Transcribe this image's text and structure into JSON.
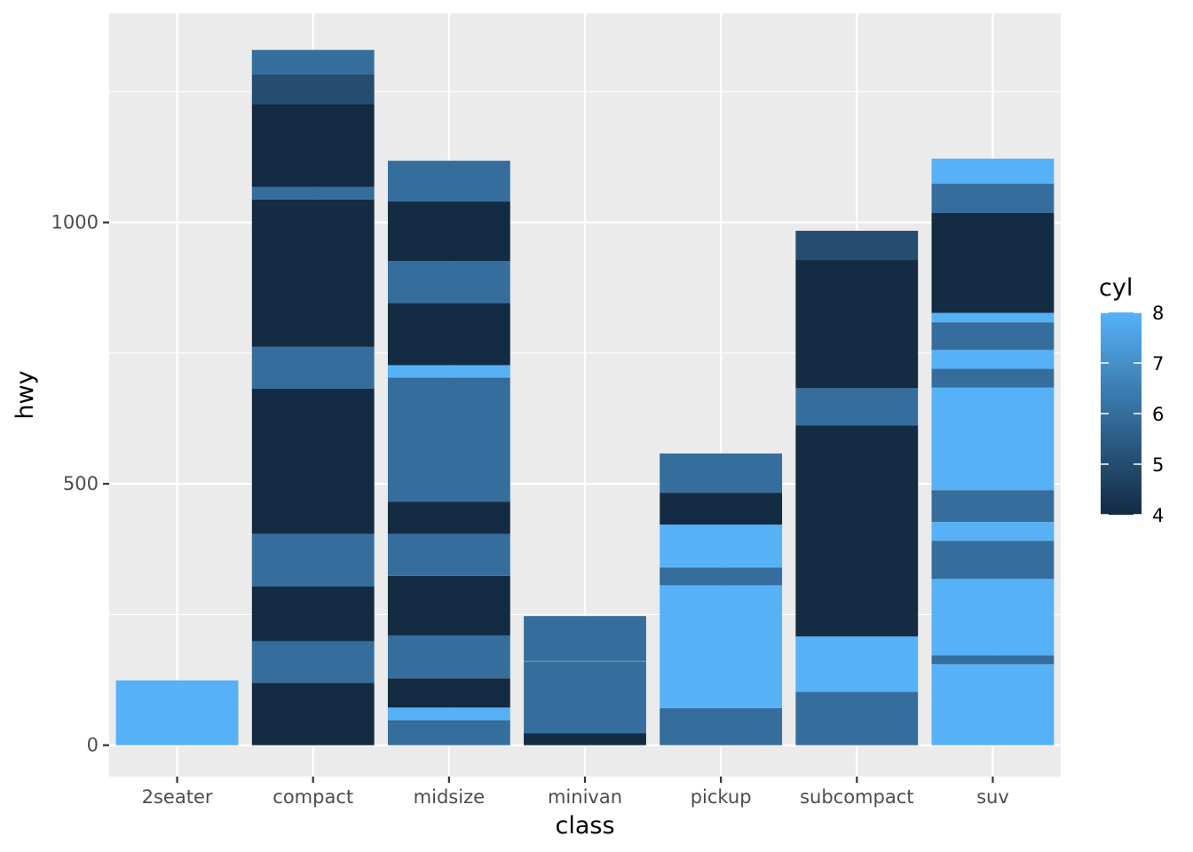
{
  "chart_data": {
    "type": "bar",
    "stacked": true,
    "xlabel": "class",
    "ylabel": "hwy",
    "ylim": [
      -60,
      1400
    ],
    "yticks": [
      0,
      500,
      1000
    ],
    "grid": true,
    "legend": {
      "title": "cyl",
      "type": "colorbar",
      "placement": "right",
      "range": [
        4,
        8
      ],
      "ticks": [
        "4",
        "5",
        "6",
        "7",
        "8"
      ],
      "color_low": "#132B43",
      "color_high": "#56B1F7"
    },
    "categories": [
      "2seater",
      "compact",
      "midsize",
      "minivan",
      "pickup",
      "subcompact",
      "suv"
    ],
    "stacks": [
      [
        {
          "value": 124,
          "cyl": 8
        }
      ],
      [
        {
          "value": 119,
          "cyl": 4
        },
        {
          "value": 80,
          "cyl": 6
        },
        {
          "value": 105,
          "cyl": 4
        },
        {
          "value": 100,
          "cyl": 6
        },
        {
          "value": 278,
          "cyl": 4
        },
        {
          "value": 80,
          "cyl": 6
        },
        {
          "value": 282,
          "cyl": 4
        },
        {
          "value": 24,
          "cyl": 6
        },
        {
          "value": 158,
          "cyl": 4
        },
        {
          "value": 58,
          "cyl": 5
        },
        {
          "value": 46,
          "cyl": 6
        }
      ],
      [
        {
          "value": 48,
          "cyl": 6
        },
        {
          "value": 24,
          "cyl": 8
        },
        {
          "value": 56,
          "cyl": 4
        },
        {
          "value": 82,
          "cyl": 6
        },
        {
          "value": 114,
          "cyl": 4
        },
        {
          "value": 80,
          "cyl": 6
        },
        {
          "value": 62,
          "cyl": 4
        },
        {
          "value": 237,
          "cyl": 6
        },
        {
          "value": 24,
          "cyl": 8
        },
        {
          "value": 119,
          "cyl": 4
        },
        {
          "value": 80,
          "cyl": 6
        },
        {
          "value": 114,
          "cyl": 4
        },
        {
          "value": 78,
          "cyl": 6
        }
      ],
      [
        {
          "value": 23,
          "cyl": 4
        },
        {
          "value": 137,
          "cyl": 6
        },
        {
          "value": 1,
          "cyl": 8
        },
        {
          "value": 86,
          "cyl": 6
        }
      ],
      [
        {
          "value": 71,
          "cyl": 6
        },
        {
          "value": 235,
          "cyl": 8
        },
        {
          "value": 34,
          "cyl": 6
        },
        {
          "value": 82,
          "cyl": 8
        },
        {
          "value": 61,
          "cyl": 4
        },
        {
          "value": 75,
          "cyl": 6
        }
      ],
      [
        {
          "value": 102,
          "cyl": 6
        },
        {
          "value": 106,
          "cyl": 8
        },
        {
          "value": 404,
          "cyl": 4
        },
        {
          "value": 71,
          "cyl": 6
        },
        {
          "value": 245,
          "cyl": 4
        },
        {
          "value": 56,
          "cyl": 5
        }
      ],
      [
        {
          "value": 155,
          "cyl": 8
        },
        {
          "value": 17,
          "cyl": 6
        },
        {
          "value": 146,
          "cyl": 8
        },
        {
          "value": 73,
          "cyl": 6
        },
        {
          "value": 36,
          "cyl": 8
        },
        {
          "value": 61,
          "cyl": 6
        },
        {
          "value": 196,
          "cyl": 8
        },
        {
          "value": 36,
          "cyl": 6
        },
        {
          "value": 36,
          "cyl": 8
        },
        {
          "value": 53,
          "cyl": 6
        },
        {
          "value": 18,
          "cyl": 8
        },
        {
          "value": 191,
          "cyl": 4
        },
        {
          "value": 56,
          "cyl": 6
        },
        {
          "value": 48,
          "cyl": 8
        }
      ]
    ]
  }
}
